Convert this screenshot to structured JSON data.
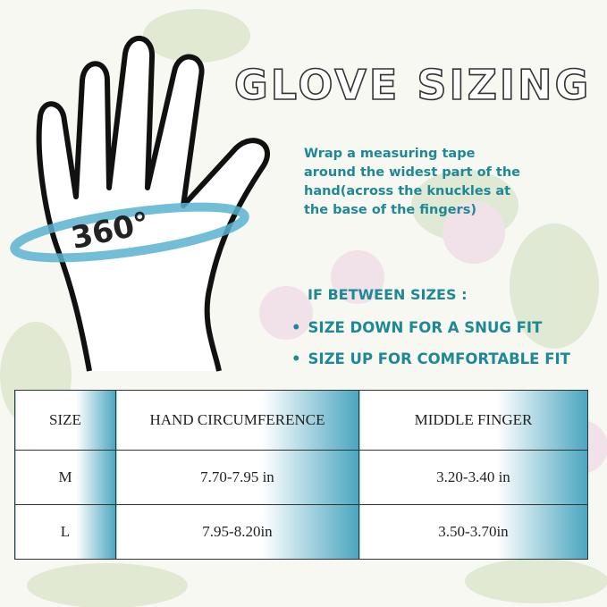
{
  "title": "GLOVE SIZING",
  "hand_label": "360°",
  "instruction": "Wrap a measuring tape around the widest part of the hand(across the knuckles at the base of the fingers)",
  "between_heading": "IF BETWEEN SIZES :",
  "tips": [
    "SIZE DOWN FOR A SNUG FIT",
    "SIZE UP FOR COMFORTABLE FIT"
  ],
  "table": {
    "headers": [
      "SIZE",
      "HAND CIRCUMFERENCE",
      "MIDDLE FINGER"
    ],
    "rows": [
      [
        "M",
        "7.70-7.95 in",
        "3.20-3.40 in"
      ],
      [
        "L",
        "7.95-8.20in",
        "3.50-3.70in"
      ]
    ]
  },
  "colors": {
    "accent": "#1f8896",
    "table_gradient": "#4aa6c0"
  }
}
